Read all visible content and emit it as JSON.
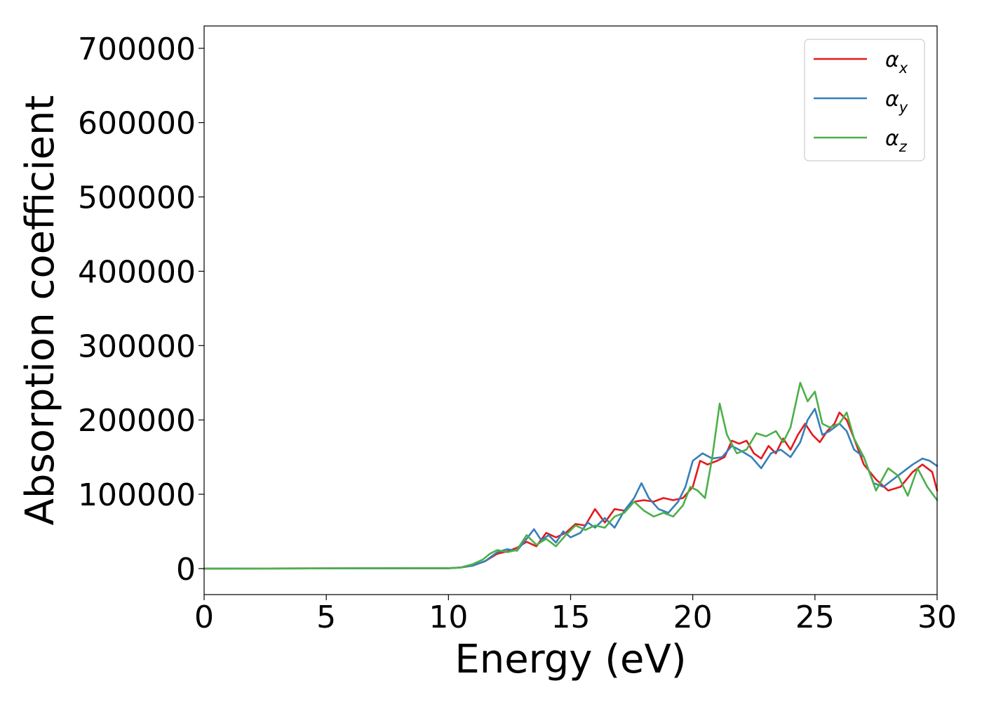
{
  "chart_data": {
    "type": "line",
    "title": "",
    "xlabel": "Energy (eV)",
    "ylabel": "Absorption coefficient",
    "xlim": [
      0,
      30
    ],
    "ylim": [
      -35000,
      730000
    ],
    "xticks": [
      0,
      5,
      10,
      15,
      20,
      25,
      30
    ],
    "yticks": [
      0,
      100000,
      200000,
      300000,
      400000,
      500000,
      600000,
      700000
    ],
    "grid": false,
    "legend_position": "top-right",
    "series": [
      {
        "name": "α_x",
        "legend_base": "α",
        "legend_sub": "x",
        "color": "#e41a1c",
        "points": [
          [
            0,
            0
          ],
          [
            10,
            500
          ],
          [
            10.5,
            1500
          ],
          [
            11,
            4000
          ],
          [
            11.5,
            10000
          ],
          [
            12,
            20000
          ],
          [
            12.4,
            23000
          ],
          [
            12.8,
            28000
          ],
          [
            13.2,
            36000
          ],
          [
            13.6,
            30000
          ],
          [
            14,
            48000
          ],
          [
            14.4,
            42000
          ],
          [
            14.8,
            48000
          ],
          [
            15.2,
            60000
          ],
          [
            15.6,
            58000
          ],
          [
            16,
            80000
          ],
          [
            16.4,
            62000
          ],
          [
            16.8,
            80000
          ],
          [
            17.2,
            78000
          ],
          [
            17.6,
            90000
          ],
          [
            18,
            92000
          ],
          [
            18.4,
            90000
          ],
          [
            18.8,
            95000
          ],
          [
            19.2,
            92000
          ],
          [
            19.6,
            95000
          ],
          [
            20,
            110000
          ],
          [
            20.3,
            145000
          ],
          [
            20.6,
            140000
          ],
          [
            21,
            145000
          ],
          [
            21.3,
            150000
          ],
          [
            21.6,
            172000
          ],
          [
            21.9,
            168000
          ],
          [
            22.2,
            172000
          ],
          [
            22.5,
            155000
          ],
          [
            22.8,
            148000
          ],
          [
            23.1,
            165000
          ],
          [
            23.4,
            155000
          ],
          [
            23.7,
            175000
          ],
          [
            24,
            160000
          ],
          [
            24.3,
            180000
          ],
          [
            24.6,
            195000
          ],
          [
            24.9,
            180000
          ],
          [
            25.2,
            170000
          ],
          [
            25.5,
            185000
          ],
          [
            25.8,
            195000
          ],
          [
            26,
            210000
          ],
          [
            26.3,
            200000
          ],
          [
            26.6,
            175000
          ],
          [
            27,
            140000
          ],
          [
            27.5,
            120000
          ],
          [
            28,
            105000
          ],
          [
            28.5,
            110000
          ],
          [
            29,
            130000
          ],
          [
            29.4,
            140000
          ],
          [
            29.8,
            130000
          ],
          [
            30,
            105000
          ]
        ]
      },
      {
        "name": "α_y",
        "legend_base": "α",
        "legend_sub": "y",
        "color": "#377eb8",
        "points": [
          [
            0,
            0
          ],
          [
            10,
            500
          ],
          [
            10.5,
            1500
          ],
          [
            11,
            4000
          ],
          [
            11.5,
            10000
          ],
          [
            12,
            22000
          ],
          [
            12.4,
            26000
          ],
          [
            12.8,
            24000
          ],
          [
            13.2,
            40000
          ],
          [
            13.5,
            53000
          ],
          [
            13.8,
            38000
          ],
          [
            14.1,
            45000
          ],
          [
            14.4,
            35000
          ],
          [
            14.7,
            50000
          ],
          [
            15,
            42000
          ],
          [
            15.4,
            48000
          ],
          [
            15.7,
            62000
          ],
          [
            16,
            55000
          ],
          [
            16.4,
            68000
          ],
          [
            16.8,
            55000
          ],
          [
            17.2,
            78000
          ],
          [
            17.6,
            95000
          ],
          [
            17.9,
            115000
          ],
          [
            18.2,
            95000
          ],
          [
            18.6,
            80000
          ],
          [
            19,
            75000
          ],
          [
            19.4,
            90000
          ],
          [
            19.7,
            110000
          ],
          [
            20,
            145000
          ],
          [
            20.4,
            155000
          ],
          [
            20.8,
            148000
          ],
          [
            21.2,
            150000
          ],
          [
            21.6,
            165000
          ],
          [
            22,
            158000
          ],
          [
            22.4,
            150000
          ],
          [
            22.8,
            135000
          ],
          [
            23.2,
            155000
          ],
          [
            23.6,
            160000
          ],
          [
            24,
            150000
          ],
          [
            24.4,
            170000
          ],
          [
            24.7,
            200000
          ],
          [
            25,
            215000
          ],
          [
            25.3,
            180000
          ],
          [
            25.6,
            185000
          ],
          [
            26,
            195000
          ],
          [
            26.3,
            185000
          ],
          [
            26.6,
            160000
          ],
          [
            27,
            150000
          ],
          [
            27.4,
            115000
          ],
          [
            27.8,
            110000
          ],
          [
            28.2,
            120000
          ],
          [
            28.6,
            130000
          ],
          [
            29,
            140000
          ],
          [
            29.4,
            148000
          ],
          [
            29.7,
            145000
          ],
          [
            30,
            138000
          ]
        ]
      },
      {
        "name": "α_z",
        "legend_base": "α",
        "legend_sub": "z",
        "color": "#4daf4a",
        "points": [
          [
            0,
            0
          ],
          [
            10,
            500
          ],
          [
            10.5,
            1500
          ],
          [
            11,
            6000
          ],
          [
            11.4,
            12000
          ],
          [
            11.7,
            20000
          ],
          [
            12,
            25000
          ],
          [
            12.4,
            22000
          ],
          [
            12.8,
            25000
          ],
          [
            13.2,
            45000
          ],
          [
            13.6,
            32000
          ],
          [
            14,
            40000
          ],
          [
            14.4,
            30000
          ],
          [
            14.8,
            45000
          ],
          [
            15.2,
            58000
          ],
          [
            15.6,
            52000
          ],
          [
            16,
            58000
          ],
          [
            16.4,
            55000
          ],
          [
            16.8,
            70000
          ],
          [
            17.2,
            75000
          ],
          [
            17.6,
            90000
          ],
          [
            18,
            78000
          ],
          [
            18.4,
            70000
          ],
          [
            18.8,
            75000
          ],
          [
            19.2,
            70000
          ],
          [
            19.6,
            85000
          ],
          [
            19.9,
            110000
          ],
          [
            20.2,
            105000
          ],
          [
            20.5,
            95000
          ],
          [
            20.8,
            150000
          ],
          [
            21.1,
            222000
          ],
          [
            21.4,
            180000
          ],
          [
            21.8,
            155000
          ],
          [
            22.2,
            160000
          ],
          [
            22.6,
            182000
          ],
          [
            23,
            178000
          ],
          [
            23.4,
            185000
          ],
          [
            23.7,
            170000
          ],
          [
            24,
            190000
          ],
          [
            24.4,
            250000
          ],
          [
            24.7,
            225000
          ],
          [
            25,
            238000
          ],
          [
            25.3,
            195000
          ],
          [
            25.6,
            190000
          ],
          [
            26,
            195000
          ],
          [
            26.3,
            210000
          ],
          [
            26.6,
            175000
          ],
          [
            27,
            150000
          ],
          [
            27.5,
            105000
          ],
          [
            28,
            135000
          ],
          [
            28.4,
            125000
          ],
          [
            28.8,
            98000
          ],
          [
            29.2,
            135000
          ],
          [
            29.6,
            110000
          ],
          [
            30,
            92000
          ]
        ]
      }
    ]
  }
}
